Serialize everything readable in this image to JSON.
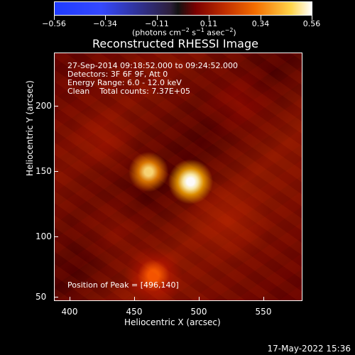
{
  "colorbar": {
    "min_label": "−0.56",
    "ticks": [
      "−0.34",
      "−0.11",
      "0.11",
      "0.34"
    ],
    "max_label": "0.56",
    "unit_prefix": "(photons cm",
    "unit_sup1": "−2",
    "unit_mid": " s",
    "unit_sup2": "−1",
    "unit_mid2": " asec",
    "unit_sup3": "−2",
    "unit_suffix": ")"
  },
  "title": "Reconstructed RHESSI Image",
  "annotations": {
    "time": "27-Sep-2014 09:18:52.000 to 09:24:52.000",
    "detectors": "Detectors: 3F 6F 9F, Att 0",
    "energy": "Energy Range: 6.0 - 12.0 keV",
    "clean": "Clean    Total counts: 7.37E+05",
    "peak": "Position of Peak = [496,140]"
  },
  "axes": {
    "x_label": "Heliocentric X (arcsec)",
    "y_label": "Heliocentric Y (arcsec)",
    "x_ticks": [
      "400",
      "450",
      "500",
      "550"
    ],
    "y_ticks": [
      "200",
      "150",
      "100",
      "50"
    ]
  },
  "footer": {
    "date": "17-May-2022 15:36"
  }
}
